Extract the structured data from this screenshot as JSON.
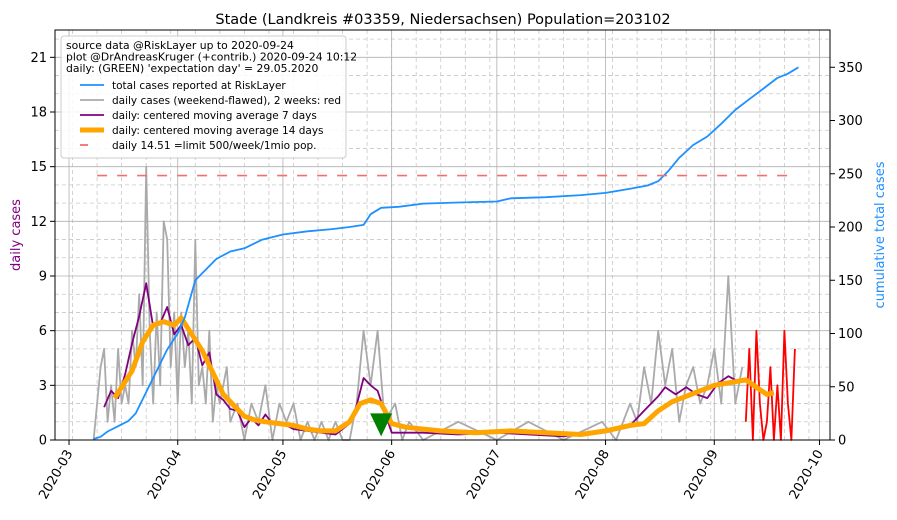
{
  "chart_data": {
    "type": "line",
    "title": "Stade (Landkreis #03359, Niedersachsen) Population=203102",
    "ylabel_left": "daily cases",
    "ylabel_right": "cumulative total cases",
    "ylabel_left_color": "#800080",
    "ylabel_right_color": "#1e90ff",
    "ylim_left": [
      0,
      22.5
    ],
    "ylim_right": [
      0,
      385
    ],
    "yticks_left": [
      0,
      3,
      6,
      9,
      12,
      15,
      18,
      21
    ],
    "yticks_right": [
      0,
      50,
      100,
      150,
      200,
      250,
      300,
      350
    ],
    "xticks": [
      {
        "label": "2020-03",
        "date": "2020-03-01"
      },
      {
        "label": "2020-04",
        "date": "2020-04-01"
      },
      {
        "label": "2020-05",
        "date": "2020-05-01"
      },
      {
        "label": "2020-06",
        "date": "2020-06-01"
      },
      {
        "label": "2020-07",
        "date": "2020-07-01"
      },
      {
        "label": "2020-08",
        "date": "2020-08-01"
      },
      {
        "label": "2020-09",
        "date": "2020-09-01"
      },
      {
        "label": "2020-10",
        "date": "2020-10-01"
      }
    ],
    "xlim": [
      "2020-02-26",
      "2020-10-04"
    ],
    "grid": true,
    "legend": {
      "placement": "top-left",
      "header": [
        "source data @RiskLayer up to 2020-09-24",
        "plot @DrAndreasKruger (+contrib.) 2020-09-24 10:12",
        "daily: (GREEN) 'expectation day' = 29.05.2020"
      ]
    },
    "series": [
      {
        "name": "total cases reported at RiskLayer",
        "axis": "right",
        "color": "#1e90ff",
        "style": "solid",
        "points": [
          [
            "2020-03-08",
            1
          ],
          [
            "2020-03-10",
            3
          ],
          [
            "2020-03-12",
            8
          ],
          [
            "2020-03-15",
            13
          ],
          [
            "2020-03-18",
            18
          ],
          [
            "2020-03-20",
            25
          ],
          [
            "2020-03-23",
            45
          ],
          [
            "2020-03-26",
            65
          ],
          [
            "2020-03-29",
            85
          ],
          [
            "2020-04-01",
            100
          ],
          [
            "2020-04-03",
            115
          ],
          [
            "2020-04-06",
            150
          ],
          [
            "2020-04-09",
            160
          ],
          [
            "2020-04-12",
            170
          ],
          [
            "2020-04-16",
            177
          ],
          [
            "2020-04-20",
            180
          ],
          [
            "2020-04-25",
            188
          ],
          [
            "2020-05-01",
            193
          ],
          [
            "2020-05-08",
            196
          ],
          [
            "2020-05-15",
            198
          ],
          [
            "2020-05-20",
            200
          ],
          [
            "2020-05-24",
            202
          ],
          [
            "2020-05-26",
            212
          ],
          [
            "2020-05-29",
            218
          ],
          [
            "2020-06-03",
            219
          ],
          [
            "2020-06-10",
            222
          ],
          [
            "2020-06-20",
            223
          ],
          [
            "2020-07-01",
            224
          ],
          [
            "2020-07-05",
            227
          ],
          [
            "2020-07-15",
            228
          ],
          [
            "2020-07-25",
            230
          ],
          [
            "2020-08-01",
            232
          ],
          [
            "2020-08-08",
            236
          ],
          [
            "2020-08-13",
            239
          ],
          [
            "2020-08-16",
            243
          ],
          [
            "2020-08-19",
            253
          ],
          [
            "2020-08-22",
            265
          ],
          [
            "2020-08-26",
            277
          ],
          [
            "2020-08-30",
            285
          ],
          [
            "2020-09-03",
            297
          ],
          [
            "2020-09-07",
            310
          ],
          [
            "2020-09-11",
            320
          ],
          [
            "2020-09-15",
            330
          ],
          [
            "2020-09-19",
            340
          ],
          [
            "2020-09-22",
            344
          ],
          [
            "2020-09-25",
            350
          ]
        ]
      },
      {
        "name": "daily cases (weekend-flawed), 2 weeks: red",
        "axis": "left",
        "color": "#aaaaaa",
        "style": "solid",
        "points": [
          [
            "2020-03-08",
            0
          ],
          [
            "2020-03-10",
            4
          ],
          [
            "2020-03-11",
            5
          ],
          [
            "2020-03-12",
            1
          ],
          [
            "2020-03-13",
            3
          ],
          [
            "2020-03-14",
            1
          ],
          [
            "2020-03-15",
            5
          ],
          [
            "2020-03-16",
            2
          ],
          [
            "2020-03-17",
            3
          ],
          [
            "2020-03-18",
            2
          ],
          [
            "2020-03-19",
            6
          ],
          [
            "2020-03-20",
            4
          ],
          [
            "2020-03-21",
            8
          ],
          [
            "2020-03-22",
            3
          ],
          [
            "2020-03-23",
            15
          ],
          [
            "2020-03-24",
            6
          ],
          [
            "2020-03-25",
            2
          ],
          [
            "2020-03-26",
            7
          ],
          [
            "2020-03-27",
            3
          ],
          [
            "2020-03-28",
            12
          ],
          [
            "2020-03-29",
            11
          ],
          [
            "2020-03-30",
            4
          ],
          [
            "2020-03-31",
            7
          ],
          [
            "2020-04-01",
            2
          ],
          [
            "2020-04-02",
            7
          ],
          [
            "2020-04-03",
            4
          ],
          [
            "2020-04-04",
            6
          ],
          [
            "2020-04-05",
            2
          ],
          [
            "2020-04-06",
            11
          ],
          [
            "2020-04-07",
            3
          ],
          [
            "2020-04-08",
            4
          ],
          [
            "2020-04-09",
            2
          ],
          [
            "2020-04-10",
            6
          ],
          [
            "2020-04-11",
            1
          ],
          [
            "2020-04-12",
            3
          ],
          [
            "2020-04-13",
            2
          ],
          [
            "2020-04-15",
            4
          ],
          [
            "2020-04-16",
            1
          ],
          [
            "2020-04-18",
            2
          ],
          [
            "2020-04-20",
            0
          ],
          [
            "2020-04-22",
            2
          ],
          [
            "2020-04-24",
            1
          ],
          [
            "2020-04-26",
            3
          ],
          [
            "2020-04-28",
            0
          ],
          [
            "2020-04-30",
            2
          ],
          [
            "2020-05-02",
            1
          ],
          [
            "2020-05-04",
            2
          ],
          [
            "2020-05-06",
            0
          ],
          [
            "2020-05-08",
            1
          ],
          [
            "2020-05-10",
            0
          ],
          [
            "2020-05-12",
            1
          ],
          [
            "2020-05-14",
            0
          ],
          [
            "2020-05-16",
            1
          ],
          [
            "2020-05-18",
            0
          ],
          [
            "2020-05-20",
            0
          ],
          [
            "2020-05-22",
            2
          ],
          [
            "2020-05-24",
            6
          ],
          [
            "2020-05-26",
            3
          ],
          [
            "2020-05-28",
            6
          ],
          [
            "2020-05-30",
            1
          ],
          [
            "2020-06-02",
            2
          ],
          [
            "2020-06-04",
            0
          ],
          [
            "2020-06-06",
            1
          ],
          [
            "2020-06-10",
            0
          ],
          [
            "2020-06-20",
            1
          ],
          [
            "2020-07-01",
            0
          ],
          [
            "2020-07-10",
            1
          ],
          [
            "2020-07-20",
            0
          ],
          [
            "2020-07-31",
            1
          ],
          [
            "2020-08-04",
            0
          ],
          [
            "2020-08-08",
            2
          ],
          [
            "2020-08-10",
            1
          ],
          [
            "2020-08-12",
            4
          ],
          [
            "2020-08-14",
            2
          ],
          [
            "2020-08-16",
            6
          ],
          [
            "2020-08-18",
            3
          ],
          [
            "2020-08-20",
            5
          ],
          [
            "2020-08-22",
            1
          ],
          [
            "2020-08-24",
            3
          ],
          [
            "2020-08-26",
            4
          ],
          [
            "2020-08-28",
            2
          ],
          [
            "2020-08-30",
            3
          ],
          [
            "2020-09-01",
            5
          ],
          [
            "2020-09-03",
            2
          ],
          [
            "2020-09-05",
            9
          ],
          [
            "2020-09-07",
            2
          ],
          [
            "2020-09-09",
            4
          ]
        ]
      },
      {
        "name": "daily cases last 2 weeks",
        "axis": "left",
        "color": "#ff0000",
        "style": "solid",
        "points": [
          [
            "2020-09-10",
            1
          ],
          [
            "2020-09-11",
            5
          ],
          [
            "2020-09-12",
            0
          ],
          [
            "2020-09-13",
            6
          ],
          [
            "2020-09-14",
            2
          ],
          [
            "2020-09-15",
            0
          ],
          [
            "2020-09-16",
            1
          ],
          [
            "2020-09-17",
            4
          ],
          [
            "2020-09-18",
            0
          ],
          [
            "2020-09-19",
            3
          ],
          [
            "2020-09-20",
            0
          ],
          [
            "2020-09-21",
            6
          ],
          [
            "2020-09-22",
            2
          ],
          [
            "2020-09-23",
            0
          ],
          [
            "2020-09-24",
            5
          ]
        ]
      },
      {
        "name": "daily: centered moving average 7 days",
        "axis": "left",
        "color": "#800080",
        "style": "solid",
        "points": [
          [
            "2020-03-11",
            1.8
          ],
          [
            "2020-03-13",
            2.7
          ],
          [
            "2020-03-15",
            2.3
          ],
          [
            "2020-03-17",
            3.6
          ],
          [
            "2020-03-19",
            5.3
          ],
          [
            "2020-03-21",
            6.8
          ],
          [
            "2020-03-23",
            8.6
          ],
          [
            "2020-03-25",
            6.2
          ],
          [
            "2020-03-27",
            6.4
          ],
          [
            "2020-03-29",
            7.3
          ],
          [
            "2020-03-31",
            5.8
          ],
          [
            "2020-04-02",
            6.3
          ],
          [
            "2020-04-04",
            5.2
          ],
          [
            "2020-04-06",
            5.6
          ],
          [
            "2020-04-08",
            4.1
          ],
          [
            "2020-04-10",
            4.8
          ],
          [
            "2020-04-12",
            2.5
          ],
          [
            "2020-04-14",
            2.2
          ],
          [
            "2020-04-16",
            1.7
          ],
          [
            "2020-04-18",
            1.6
          ],
          [
            "2020-04-20",
            0.7
          ],
          [
            "2020-04-22",
            1.2
          ],
          [
            "2020-04-24",
            0.8
          ],
          [
            "2020-04-26",
            1.4
          ],
          [
            "2020-04-28",
            0.9
          ],
          [
            "2020-04-30",
            1.0
          ],
          [
            "2020-05-04",
            0.6
          ],
          [
            "2020-05-08",
            0.5
          ],
          [
            "2020-05-12",
            0.4
          ],
          [
            "2020-05-16",
            0.3
          ],
          [
            "2020-05-20",
            0.9
          ],
          [
            "2020-05-22",
            1.9
          ],
          [
            "2020-05-24",
            3.4
          ],
          [
            "2020-05-26",
            3.0
          ],
          [
            "2020-05-28",
            2.7
          ],
          [
            "2020-06-01",
            0.4
          ],
          [
            "2020-06-10",
            0.4
          ],
          [
            "2020-06-20",
            0.3
          ],
          [
            "2020-07-01",
            0.4
          ],
          [
            "2020-07-10",
            0.3
          ],
          [
            "2020-07-20",
            0.2
          ],
          [
            "2020-08-01",
            0.5
          ],
          [
            "2020-08-08",
            0.8
          ],
          [
            "2020-08-12",
            1.6
          ],
          [
            "2020-08-16",
            2.4
          ],
          [
            "2020-08-18",
            2.9
          ],
          [
            "2020-08-21",
            2.5
          ],
          [
            "2020-08-24",
            2.9
          ],
          [
            "2020-08-27",
            2.5
          ],
          [
            "2020-08-30",
            2.3
          ],
          [
            "2020-09-02",
            3.1
          ],
          [
            "2020-09-05",
            3.5
          ],
          [
            "2020-09-08",
            3.2
          ]
        ]
      },
      {
        "name": "daily: centered moving average 14 days",
        "axis": "left",
        "color": "#ffa500",
        "style": "thick",
        "points": [
          [
            "2020-03-14",
            2.3
          ],
          [
            "2020-03-16",
            2.9
          ],
          [
            "2020-03-19",
            3.8
          ],
          [
            "2020-03-22",
            5.4
          ],
          [
            "2020-03-25",
            6.3
          ],
          [
            "2020-03-28",
            6.5
          ],
          [
            "2020-03-31",
            6.3
          ],
          [
            "2020-04-02",
            6.7
          ],
          [
            "2020-04-05",
            5.8
          ],
          [
            "2020-04-08",
            4.9
          ],
          [
            "2020-04-11",
            3.7
          ],
          [
            "2020-04-14",
            2.5
          ],
          [
            "2020-04-17",
            1.9
          ],
          [
            "2020-04-20",
            1.3
          ],
          [
            "2020-04-23",
            1.1
          ],
          [
            "2020-04-26",
            1.0
          ],
          [
            "2020-04-30",
            0.9
          ],
          [
            "2020-05-04",
            0.8
          ],
          [
            "2020-05-08",
            0.6
          ],
          [
            "2020-05-12",
            0.5
          ],
          [
            "2020-05-16",
            0.5
          ],
          [
            "2020-05-20",
            1.0
          ],
          [
            "2020-05-23",
            2.0
          ],
          [
            "2020-05-26",
            2.2
          ],
          [
            "2020-05-29",
            2.0
          ],
          [
            "2020-06-01",
            0.9
          ],
          [
            "2020-06-05",
            0.7
          ],
          [
            "2020-06-10",
            0.6
          ],
          [
            "2020-06-15",
            0.5
          ],
          [
            "2020-06-25",
            0.4
          ],
          [
            "2020-07-05",
            0.5
          ],
          [
            "2020-07-15",
            0.4
          ],
          [
            "2020-07-25",
            0.3
          ],
          [
            "2020-08-01",
            0.5
          ],
          [
            "2020-08-08",
            0.8
          ],
          [
            "2020-08-12",
            0.9
          ],
          [
            "2020-08-16",
            1.6
          ],
          [
            "2020-08-20",
            2.1
          ],
          [
            "2020-08-24",
            2.4
          ],
          [
            "2020-08-28",
            2.7
          ],
          [
            "2020-09-01",
            3.0
          ],
          [
            "2020-09-04",
            3.1
          ],
          [
            "2020-09-07",
            3.2
          ],
          [
            "2020-09-10",
            3.3
          ],
          [
            "2020-09-13",
            2.9
          ],
          [
            "2020-09-16",
            2.5
          ],
          [
            "2020-09-18",
            2.6
          ]
        ]
      },
      {
        "name": "daily 14.51 =limit 500/week/1mio pop.",
        "axis": "left",
        "color": "#f07070",
        "style": "dashed",
        "points": [
          [
            "2020-03-09",
            14.51
          ],
          [
            "2020-09-24",
            14.51
          ]
        ]
      }
    ],
    "expectation_marker": {
      "date": "2020-05-29",
      "value": 0.8,
      "color": "#007f00"
    }
  }
}
